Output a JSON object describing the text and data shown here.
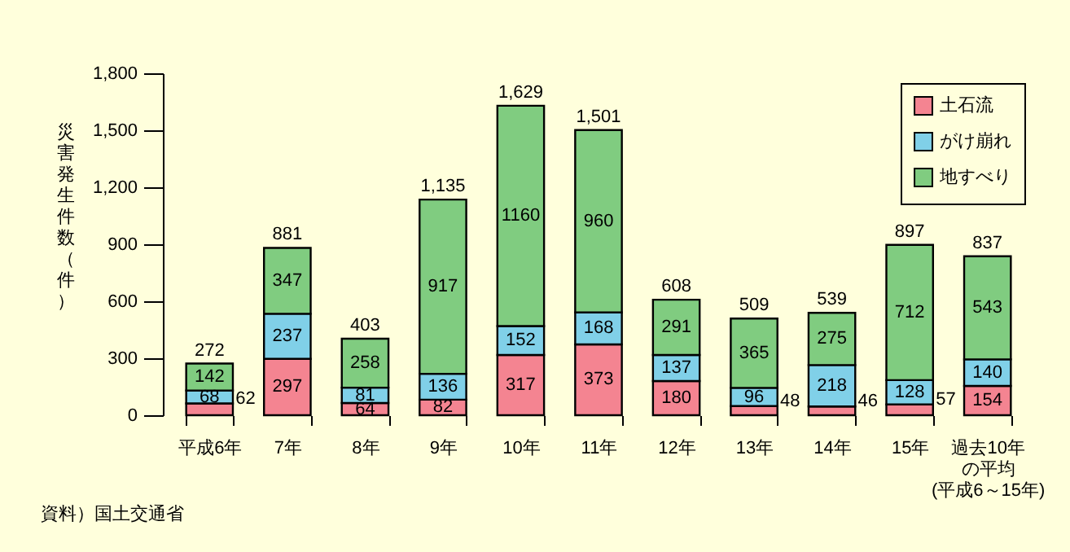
{
  "chart_data": {
    "type": "bar",
    "stacked": true,
    "ylabel": "災害発生件数（件）",
    "categories": [
      "平成6年",
      "7年",
      "8年",
      "9年",
      "10年",
      "11年",
      "12年",
      "13年",
      "14年",
      "15年",
      "過去10年の平均(平成6～15年)"
    ],
    "series": [
      {
        "name": "土石流",
        "color": "#f48491",
        "values": [
          62,
          297,
          64,
          82,
          317,
          373,
          180,
          48,
          46,
          57,
          154
        ]
      },
      {
        "name": "がけ崩れ",
        "color": "#80d0e8",
        "values": [
          68,
          237,
          81,
          136,
          152,
          168,
          137,
          96,
          218,
          128,
          140
        ]
      },
      {
        "name": "地すべり",
        "color": "#80cc80",
        "values": [
          142,
          347,
          258,
          917,
          1160,
          960,
          291,
          365,
          275,
          712,
          543
        ]
      }
    ],
    "totals": [
      "272",
      "881",
      "403",
      "1,135",
      "1,629",
      "1,501",
      "608",
      "509",
      "539",
      "897",
      "837"
    ],
    "data_labels": true,
    "ylim": [
      0,
      1800
    ],
    "yticks": [
      0,
      300,
      600,
      900,
      {
        "value": 1200,
        "label": "1,200"
      },
      {
        "value": 1500,
        "label": "1,500"
      },
      {
        "value": 1800,
        "label": "1,800"
      }
    ],
    "grid": false,
    "legend": "top right",
    "annotations": [
      "資料）国土交通省"
    ]
  }
}
